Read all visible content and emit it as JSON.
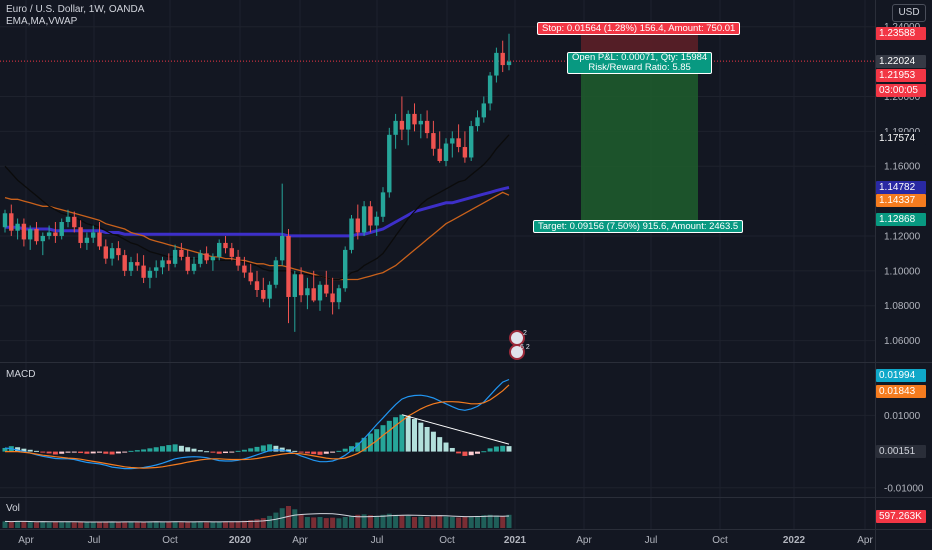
{
  "header": {
    "title": "Euro / U.S. Dollar, 1W, OANDA",
    "indicators": "EMA,MA,VWAP",
    "currency_button": "USD"
  },
  "trade": {
    "stop_label": "Stop: 0.01564 (1.28%) 156.4, Amount: 750.01",
    "pnl_label": "Open P&L: 0.00071, Qty: 15984",
    "rr_label": "Risk/Reward Ratio: 5.85",
    "target_label": "Target: 0.09156 (7.50%) 915.6, Amount: 2463.5",
    "stop_price": 1.23588,
    "entry_price": 1.22024,
    "target_price": 1.12868,
    "stop_color": "#f23645",
    "target_color": "#089981",
    "profit_zone_color": "#1e5a2c"
  },
  "price_axis": {
    "ticks": [
      "1.24000",
      "1.20000",
      "1.18000",
      "1.16000",
      "1.12000",
      "1.10000",
      "1.08000",
      "1.06000"
    ],
    "tags": [
      {
        "text": "1.23588",
        "color": "#f23645"
      },
      {
        "text": "1.22024",
        "color": "#363a45"
      },
      {
        "text": "1.21953",
        "color": "#f23645"
      },
      {
        "text": "03:00:05",
        "color": "#f23645"
      },
      {
        "text": "1.17574",
        "color": "#131722"
      },
      {
        "text": "1.14782",
        "color": "#2929a3"
      },
      {
        "text": "1.14337",
        "color": "#f57c1f"
      },
      {
        "text": "1.12868",
        "color": "#089981"
      }
    ]
  },
  "macd": {
    "title": "MACD",
    "ticks": [
      "0.01000",
      "-0.01000"
    ],
    "tags": [
      {
        "text": "0.01994",
        "color": "#0fa8c9"
      },
      {
        "text": "0.01843",
        "color": "#f57c1f"
      },
      {
        "text": "0.00151",
        "color": "#2a2e39"
      }
    ]
  },
  "volume": {
    "title": "Vol",
    "tag": "597.263K",
    "tag_color": "#f23645"
  },
  "time_axis": {
    "labels": [
      "Apr",
      "Jul",
      "Oct",
      "2020",
      "Apr",
      "Jul",
      "Oct",
      "2021",
      "Apr",
      "Jul",
      "Oct",
      "2022",
      "Apr"
    ]
  },
  "chart_data": {
    "type": "candlestick",
    "symbol": "EURUSD",
    "timeframe": "1W",
    "price_range": [
      1.05,
      1.245
    ],
    "candles": [
      [
        1.125,
        1.135,
        1.122,
        1.133
      ],
      [
        1.133,
        1.138,
        1.12,
        1.123
      ],
      [
        1.123,
        1.13,
        1.118,
        1.127
      ],
      [
        1.127,
        1.13,
        1.114,
        1.118
      ],
      [
        1.118,
        1.126,
        1.112,
        1.124
      ],
      [
        1.124,
        1.128,
        1.115,
        1.117
      ],
      [
        1.117,
        1.122,
        1.109,
        1.12
      ],
      [
        1.12,
        1.126,
        1.118,
        1.122
      ],
      [
        1.122,
        1.128,
        1.116,
        1.12
      ],
      [
        1.12,
        1.13,
        1.118,
        1.128
      ],
      [
        1.128,
        1.135,
        1.125,
        1.131
      ],
      [
        1.131,
        1.134,
        1.122,
        1.125
      ],
      [
        1.125,
        1.129,
        1.113,
        1.116
      ],
      [
        1.116,
        1.122,
        1.112,
        1.119
      ],
      [
        1.119,
        1.126,
        1.116,
        1.122
      ],
      [
        1.122,
        1.128,
        1.112,
        1.114
      ],
      [
        1.114,
        1.118,
        1.104,
        1.107
      ],
      [
        1.107,
        1.116,
        1.103,
        1.113
      ],
      [
        1.113,
        1.117,
        1.106,
        1.109
      ],
      [
        1.109,
        1.112,
        1.097,
        1.1
      ],
      [
        1.1,
        1.108,
        1.097,
        1.105
      ],
      [
        1.105,
        1.11,
        1.1,
        1.103
      ],
      [
        1.103,
        1.109,
        1.093,
        1.096
      ],
      [
        1.096,
        1.102,
        1.09,
        1.1
      ],
      [
        1.1,
        1.106,
        1.096,
        1.102
      ],
      [
        1.102,
        1.108,
        1.098,
        1.106
      ],
      [
        1.106,
        1.11,
        1.1,
        1.104
      ],
      [
        1.104,
        1.115,
        1.102,
        1.112
      ],
      [
        1.112,
        1.116,
        1.106,
        1.108
      ],
      [
        1.108,
        1.112,
        1.098,
        1.1
      ],
      [
        1.1,
        1.108,
        1.098,
        1.104
      ],
      [
        1.104,
        1.112,
        1.102,
        1.11
      ],
      [
        1.11,
        1.114,
        1.104,
        1.106
      ],
      [
        1.106,
        1.11,
        1.1,
        1.108
      ],
      [
        1.108,
        1.118,
        1.106,
        1.116
      ],
      [
        1.116,
        1.12,
        1.11,
        1.113
      ],
      [
        1.113,
        1.116,
        1.106,
        1.108
      ],
      [
        1.108,
        1.112,
        1.1,
        1.103
      ],
      [
        1.103,
        1.108,
        1.096,
        1.099
      ],
      [
        1.099,
        1.104,
        1.092,
        1.094
      ],
      [
        1.094,
        1.1,
        1.085,
        1.089
      ],
      [
        1.089,
        1.096,
        1.082,
        1.084
      ],
      [
        1.084,
        1.094,
        1.079,
        1.092
      ],
      [
        1.092,
        1.108,
        1.09,
        1.106
      ],
      [
        1.106,
        1.15,
        1.103,
        1.12
      ],
      [
        1.12,
        1.124,
        1.07,
        1.085
      ],
      [
        1.085,
        1.1,
        1.065,
        1.098
      ],
      [
        1.098,
        1.102,
        1.082,
        1.086
      ],
      [
        1.086,
        1.096,
        1.078,
        1.09
      ],
      [
        1.09,
        1.1,
        1.082,
        1.083
      ],
      [
        1.083,
        1.094,
        1.077,
        1.092
      ],
      [
        1.092,
        1.1,
        1.085,
        1.087
      ],
      [
        1.087,
        1.096,
        1.075,
        1.082
      ],
      [
        1.082,
        1.092,
        1.078,
        1.09
      ],
      [
        1.09,
        1.114,
        1.088,
        1.112
      ],
      [
        1.112,
        1.132,
        1.11,
        1.13
      ],
      [
        1.13,
        1.138,
        1.118,
        1.122
      ],
      [
        1.122,
        1.14,
        1.12,
        1.137
      ],
      [
        1.137,
        1.14,
        1.122,
        1.126
      ],
      [
        1.126,
        1.134,
        1.12,
        1.131
      ],
      [
        1.131,
        1.148,
        1.128,
        1.145
      ],
      [
        1.145,
        1.182,
        1.142,
        1.178
      ],
      [
        1.178,
        1.19,
        1.17,
        1.186
      ],
      [
        1.186,
        1.2,
        1.175,
        1.181
      ],
      [
        1.181,
        1.192,
        1.172,
        1.19
      ],
      [
        1.19,
        1.196,
        1.18,
        1.184
      ],
      [
        1.184,
        1.19,
        1.176,
        1.186
      ],
      [
        1.186,
        1.192,
        1.176,
        1.179
      ],
      [
        1.179,
        1.186,
        1.166,
        1.17
      ],
      [
        1.17,
        1.18,
        1.162,
        1.163
      ],
      [
        1.163,
        1.176,
        1.16,
        1.173
      ],
      [
        1.173,
        1.18,
        1.165,
        1.176
      ],
      [
        1.176,
        1.184,
        1.168,
        1.171
      ],
      [
        1.171,
        1.18,
        1.162,
        1.165
      ],
      [
        1.165,
        1.186,
        1.163,
        1.183
      ],
      [
        1.183,
        1.192,
        1.18,
        1.188
      ],
      [
        1.188,
        1.2,
        1.185,
        1.196
      ],
      [
        1.196,
        1.214,
        1.192,
        1.212
      ],
      [
        1.212,
        1.228,
        1.208,
        1.225
      ],
      [
        1.225,
        1.232,
        1.214,
        1.218
      ],
      [
        1.218,
        1.236,
        1.215,
        1.22
      ]
    ],
    "ema": [
      1.16,
      1.156,
      1.152,
      1.149,
      1.146,
      1.143,
      1.14,
      1.137,
      1.135,
      1.133,
      1.132,
      1.131,
      1.129,
      1.127,
      1.126,
      1.125,
      1.123,
      1.121,
      1.12,
      1.118,
      1.116,
      1.115,
      1.113,
      1.111,
      1.11,
      1.109,
      1.108,
      1.108,
      1.108,
      1.107,
      1.107,
      1.107,
      1.106,
      1.106,
      1.106,
      1.106,
      1.106,
      1.106,
      1.105,
      1.104,
      1.103,
      1.101,
      1.1,
      1.1,
      1.1,
      1.1,
      1.099,
      1.098,
      1.098,
      1.097,
      1.097,
      1.096,
      1.095,
      1.095,
      1.096,
      1.099,
      1.1,
      1.103,
      1.105,
      1.107,
      1.11,
      1.115,
      1.12,
      1.125,
      1.13,
      1.134,
      1.138,
      1.141,
      1.143,
      1.145,
      1.147,
      1.149,
      1.151,
      1.152,
      1.155,
      1.158,
      1.161,
      1.165,
      1.17,
      1.174,
      1.178
    ],
    "ma": [
      1.142,
      1.141,
      1.141,
      1.14,
      1.139,
      1.138,
      1.137,
      1.137,
      1.136,
      1.135,
      1.134,
      1.133,
      1.132,
      1.131,
      1.13,
      1.129,
      1.127,
      1.126,
      1.125,
      1.124,
      1.122,
      1.121,
      1.12,
      1.118,
      1.117,
      1.116,
      1.115,
      1.114,
      1.113,
      1.112,
      1.111,
      1.11,
      1.109,
      1.108,
      1.108,
      1.107,
      1.107,
      1.106,
      1.106,
      1.105,
      1.104,
      1.104,
      1.103,
      1.103,
      1.103,
      1.102,
      1.101,
      1.1,
      1.099,
      1.098,
      1.097,
      1.096,
      1.095,
      1.095,
      1.095,
      1.095,
      1.095,
      1.096,
      1.097,
      1.098,
      1.099,
      1.101,
      1.103,
      1.106,
      1.109,
      1.112,
      1.115,
      1.118,
      1.121,
      1.124,
      1.127,
      1.129,
      1.131,
      1.133,
      1.135,
      1.137,
      1.139,
      1.141,
      1.143,
      1.145,
      1.14337
    ],
    "vwap": [
      1.125,
      1.125,
      1.125,
      1.124,
      1.124,
      1.124,
      1.124,
      1.124,
      1.123,
      1.123,
      1.123,
      1.123,
      1.123,
      1.123,
      1.123,
      1.123,
      1.122,
      1.122,
      1.122,
      1.121,
      1.121,
      1.121,
      1.121,
      1.121,
      1.121,
      1.121,
      1.121,
      1.121,
      1.121,
      1.121,
      1.121,
      1.121,
      1.121,
      1.121,
      1.121,
      1.121,
      1.121,
      1.121,
      1.121,
      1.121,
      1.121,
      1.121,
      1.121,
      1.121,
      1.121,
      1.12,
      1.12,
      1.12,
      1.12,
      1.12,
      1.12,
      1.12,
      1.12,
      1.12,
      1.12,
      1.12,
      1.121,
      1.121,
      1.122,
      1.123,
      1.124,
      1.126,
      1.128,
      1.13,
      1.132,
      1.134,
      1.135,
      1.136,
      1.137,
      1.138,
      1.139,
      1.139,
      1.14,
      1.141,
      1.142,
      1.143,
      1.144,
      1.145,
      1.146,
      1.147,
      1.14782
    ],
    "macd_hist": [
      0.001,
      0.0015,
      0.0012,
      0.0008,
      0.0005,
      0.0002,
      -0.0002,
      -0.0005,
      -0.0008,
      -0.0006,
      -0.0003,
      -0.0001,
      -0.0004,
      -0.0006,
      -0.0005,
      -0.0003,
      -0.0006,
      -0.0008,
      -0.0005,
      -0.0002,
      0.0002,
      0.0004,
      0.0006,
      0.0009,
      0.0012,
      0.0015,
      0.0018,
      0.002,
      0.0016,
      0.0012,
      0.0008,
      0.0004,
      0.0001,
      -0.0003,
      -0.0006,
      -0.0004,
      -0.0002,
      0.0002,
      0.0005,
      0.0009,
      0.0013,
      0.0017,
      0.002,
      0.0016,
      0.0011,
      0.0006,
      0.0002,
      -0.0002,
      -0.0005,
      -0.0007,
      -0.0009,
      -0.0006,
      -0.0003,
      0.0002,
      0.0008,
      0.0015,
      0.0025,
      0.0038,
      0.005,
      0.0062,
      0.0073,
      0.0085,
      0.0095,
      0.0102,
      0.0098,
      0.009,
      0.008,
      0.0068,
      0.0055,
      0.004,
      0.0025,
      0.001,
      -0.0005,
      -0.0012,
      -0.001,
      -0.0006,
      0.0001,
      0.0009,
      0.0014,
      0.0016,
      0.00151
    ],
    "macd_line": [
      0.001,
      0.0008,
      0.0004,
      0.0,
      -0.0004,
      -0.0009,
      -0.0013,
      -0.0016,
      -0.0019,
      -0.002,
      -0.002,
      -0.0022,
      -0.0026,
      -0.003,
      -0.0032,
      -0.0034,
      -0.0038,
      -0.0043,
      -0.0045,
      -0.0047,
      -0.0047,
      -0.0046,
      -0.0044,
      -0.0041,
      -0.0037,
      -0.0032,
      -0.0026,
      -0.002,
      -0.0017,
      -0.0015,
      -0.0014,
      -0.0015,
      -0.0017,
      -0.0021,
      -0.0025,
      -0.0026,
      -0.0026,
      -0.0024,
      -0.002,
      -0.0015,
      -0.0009,
      -0.0003,
      0.0003,
      0.0005,
      0.0004,
      0.0,
      -0.0005,
      -0.0012,
      -0.0018,
      -0.0024,
      -0.0028,
      -0.0028,
      -0.0026,
      -0.002,
      -0.001,
      0.0003,
      0.0018,
      0.0036,
      0.0055,
      0.0075,
      0.0093,
      0.0112,
      0.013,
      0.0145,
      0.0152,
      0.0155,
      0.0156,
      0.0153,
      0.0148,
      0.014,
      0.0132,
      0.0124,
      0.0117,
      0.0114,
      0.0118,
      0.0125,
      0.0137,
      0.0156,
      0.0175,
      0.0192,
      0.01994
    ],
    "signal_line": [
      0.0,
      0.0,
      0.0,
      -0.0002,
      -0.0004,
      -0.0007,
      -0.001,
      -0.0012,
      -0.0014,
      -0.0016,
      -0.0018,
      -0.0019,
      -0.0021,
      -0.0024,
      -0.0027,
      -0.003,
      -0.0033,
      -0.0036,
      -0.0039,
      -0.0042,
      -0.0044,
      -0.0045,
      -0.0046,
      -0.0045,
      -0.0044,
      -0.0042,
      -0.0039,
      -0.0036,
      -0.0033,
      -0.0029,
      -0.0026,
      -0.0023,
      -0.0021,
      -0.002,
      -0.002,
      -0.0021,
      -0.0022,
      -0.0022,
      -0.0022,
      -0.0021,
      -0.0019,
      -0.0016,
      -0.0013,
      -0.001,
      -0.0007,
      -0.0005,
      -0.0005,
      -0.0006,
      -0.0009,
      -0.0012,
      -0.0015,
      -0.0018,
      -0.002,
      -0.002,
      -0.0018,
      -0.0012,
      -0.0005,
      0.0005,
      0.0018,
      0.003,
      0.0045,
      0.0058,
      0.0072,
      0.0085,
      0.0098,
      0.0108,
      0.0118,
      0.0126,
      0.0132,
      0.0136,
      0.0138,
      0.0138,
      0.0137,
      0.0135,
      0.0132,
      0.0132,
      0.0135,
      0.0143,
      0.0155,
      0.0168,
      0.01843
    ],
    "volume": [
      0.3,
      0.28,
      0.32,
      0.3,
      0.27,
      0.26,
      0.3,
      0.25,
      0.28,
      0.27,
      0.3,
      0.26,
      0.29,
      0.27,
      0.25,
      0.28,
      0.3,
      0.27,
      0.26,
      0.28,
      0.3,
      0.27,
      0.26,
      0.29,
      0.3,
      0.26,
      0.28,
      0.3,
      0.26,
      0.27,
      0.3,
      0.28,
      0.26,
      0.27,
      0.29,
      0.3,
      0.28,
      0.31,
      0.33,
      0.36,
      0.4,
      0.45,
      0.55,
      0.7,
      0.9,
      1.0,
      0.85,
      0.6,
      0.5,
      0.48,
      0.5,
      0.45,
      0.47,
      0.44,
      0.5,
      0.55,
      0.6,
      0.62,
      0.58,
      0.55,
      0.6,
      0.65,
      0.6,
      0.58,
      0.55,
      0.5,
      0.52,
      0.5,
      0.55,
      0.58,
      0.52,
      0.5,
      0.48,
      0.5,
      0.53,
      0.55,
      0.58,
      0.6,
      0.57,
      0.55,
      0.6
    ]
  }
}
